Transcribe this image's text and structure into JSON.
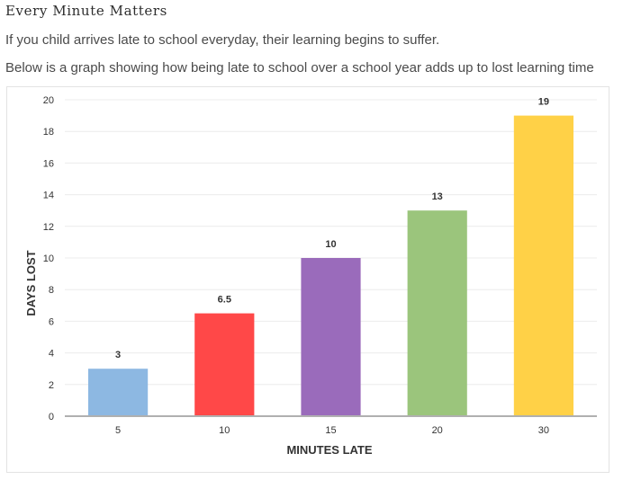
{
  "page": {
    "heading": "Every Minute Matters",
    "paragraph1": "If you child arrives late to school everyday, their learning begins to suffer.",
    "paragraph2": "Below is a graph showing how being late to school over a school year adds up to lost learning time"
  },
  "chart_data": {
    "type": "bar",
    "categories": [
      "5",
      "10",
      "15",
      "20",
      "30"
    ],
    "values": [
      3,
      6.5,
      10,
      13,
      19
    ],
    "data_labels": [
      "3",
      "6.5",
      "10",
      "13",
      "19"
    ],
    "colors": [
      "#8db8e2",
      "#ff4848",
      "#9a6bbb",
      "#9bc57c",
      "#ffd147"
    ],
    "xlabel": "MINUTES LATE",
    "ylabel": "DAYS LOST",
    "ylim": [
      0,
      20
    ],
    "yticks": [
      0,
      2,
      4,
      6,
      8,
      10,
      12,
      14,
      16,
      18,
      20
    ],
    "grid": true,
    "legend": "none"
  }
}
